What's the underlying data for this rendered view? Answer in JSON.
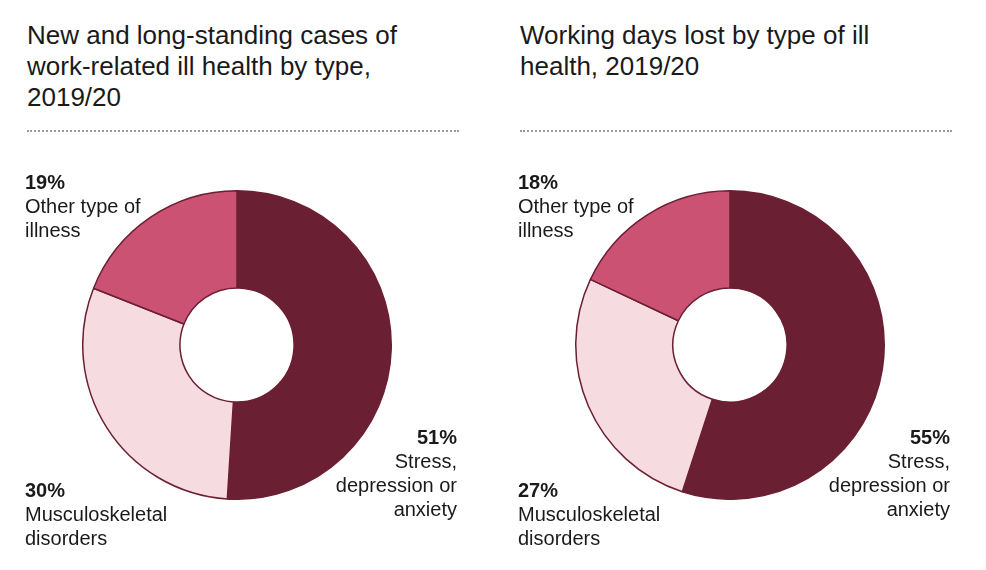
{
  "chart_data": [
    {
      "type": "doughnut",
      "title": "New and long-standing cases of work-related ill health by type, 2019/20",
      "categories": [
        "Stress, depression or anxiety",
        "Musculoskeletal disorders",
        "Other type of illness"
      ],
      "values": [
        51,
        30,
        19
      ],
      "value_labels": [
        "51%",
        "30%",
        "19%"
      ],
      "colors": [
        "#6b1f33",
        "#f6dce0",
        "#cc5273"
      ],
      "data_labels": true
    },
    {
      "type": "doughnut",
      "title": "Working days lost by type of ill health, 2019/20",
      "categories": [
        "Stress, depression or anxiety",
        "Musculoskeletal disorders",
        "Other type of illness"
      ],
      "values": [
        55,
        27,
        18
      ],
      "value_labels": [
        "55%",
        "27%",
        "18%"
      ],
      "colors": [
        "#6b1f33",
        "#f6dce0",
        "#cc5273"
      ],
      "data_labels": true
    }
  ]
}
